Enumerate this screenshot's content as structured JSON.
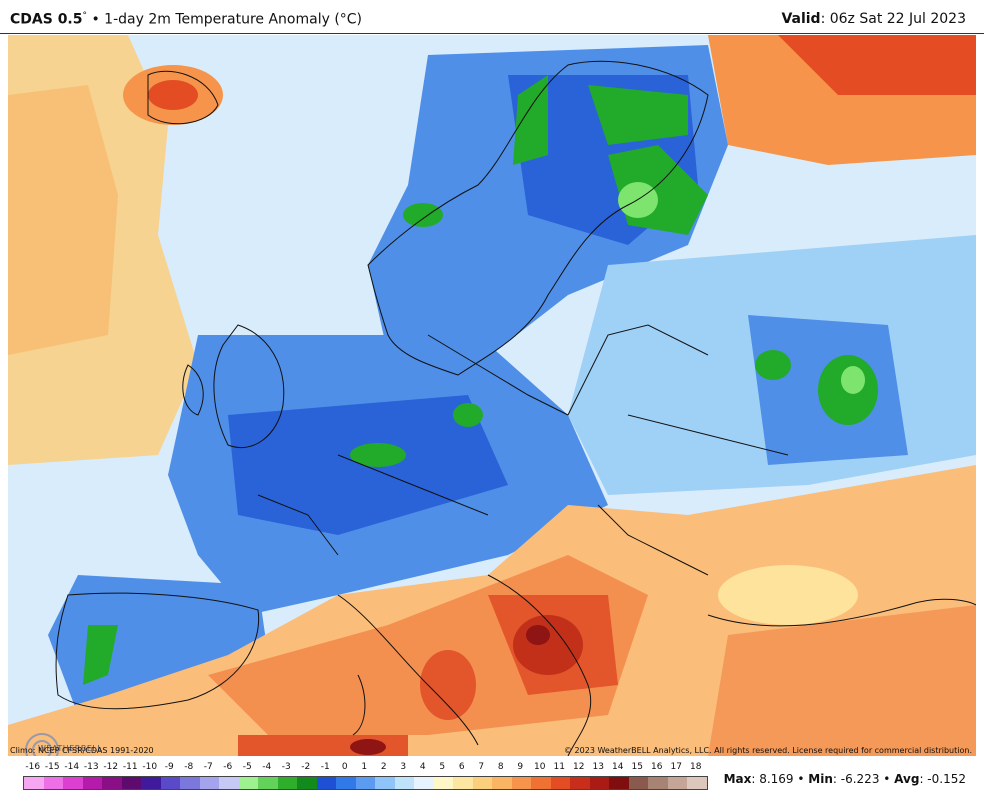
{
  "header": {
    "model": "CDAS 0.5",
    "degree": "°",
    "bullet": "•",
    "product": "1-day 2m Temperature Anomaly (°C)",
    "valid_label": "Valid",
    "valid_time": ": 06z Sat 22 Jul 2023"
  },
  "footer": {
    "climo": "Climo: NCEP CFSR/CDAS 1991-2020",
    "copyright": "© 2023 WeatherBELL Analytics, LLC. All rights reserved. License required for commercial distribution.",
    "logo_text": "WEATHERBELL"
  },
  "colorbar": {
    "labels": [
      "-16",
      "-15",
      "-14",
      "-13",
      "-12",
      "-11",
      "-10",
      "-9",
      "-8",
      "-7",
      "-6",
      "-5",
      "-4",
      "-3",
      "-2",
      "-1",
      "0",
      "1",
      "2",
      "3",
      "4",
      "5",
      "6",
      "7",
      "8",
      "9",
      "10",
      "11",
      "12",
      "13",
      "14",
      "15",
      "16",
      "17",
      "18"
    ],
    "colors": [
      "#f7a6f2",
      "#ee6fe6",
      "#dd3fd3",
      "#b61aab",
      "#8a0f86",
      "#5e0a6e",
      "#3f1a9c",
      "#5a49c8",
      "#7b78dd",
      "#a3a3ee",
      "#c6c8f6",
      "#9ff08f",
      "#63d25a",
      "#2fae2c",
      "#138a1c",
      "#1e50d6",
      "#3179e8",
      "#5b9bf0",
      "#8ec4f7",
      "#bfe3fb",
      "#e7f4fd",
      "#fff7c8",
      "#fde7a0",
      "#fbcf7e",
      "#f9b464",
      "#f5944a",
      "#f07134",
      "#e44d23",
      "#c92e1a",
      "#a91b14",
      "#7f0e0e",
      "#8a5a4e",
      "#a88373",
      "#c4a597",
      "#ddc6ba",
      "#f3c9c5",
      "#e9a2a0",
      "#de7b7c",
      "#d05656",
      "#b93636"
    ]
  },
  "stats": {
    "max_label": "Max",
    "max_value": ": 8.169",
    "min_label": "Min",
    "min_value": ": -6.223",
    "avg_label": "Avg",
    "avg_value": ": -0.152",
    "sep": " • "
  },
  "map": {
    "region": "Europe",
    "colors": {
      "sea_cool": "#d8ecfb",
      "cold_light": "#9fd0f6",
      "cold_mid": "#4f8fe8",
      "cold_deep": "#2a62d8",
      "cold_green": "#22aa2a",
      "cold_green_core": "#7de46e",
      "warm_pale": "#fde7a0",
      "warm_light": "#fbbd7a",
      "warm_mid": "#f39050",
      "warm_deep": "#e3552a",
      "warm_red": "#c2301a",
      "warm_dark": "#8f1414",
      "border": "#111111"
    }
  }
}
